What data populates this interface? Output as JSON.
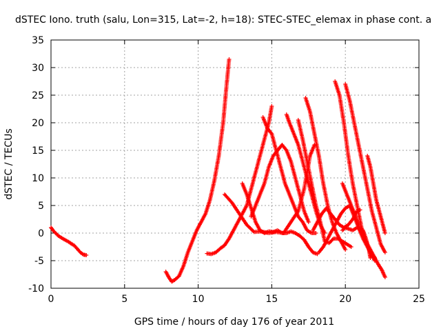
{
  "chart_data": {
    "type": "scatter",
    "title": "dSTEC Iono. truth (salu, Lon=315, Lat=-2, h=18): STEC-STEC_elemax in phase cont. a",
    "xlabel": "GPS time / hours of day 176 of year 2011",
    "ylabel": "dSTEC  / TECUs",
    "xlim": [
      0,
      25
    ],
    "ylim": [
      -10,
      35
    ],
    "xticks": [
      0,
      5,
      10,
      15,
      20,
      25
    ],
    "yticks": [
      -10,
      -5,
      0,
      5,
      10,
      15,
      20,
      25,
      30,
      35
    ],
    "xtick_labels": [
      "0",
      "5",
      "10",
      "15",
      "20",
      "25"
    ],
    "ytick_labels": [
      "-10",
      "-5",
      "0",
      "5",
      "10",
      "15",
      "20",
      "25",
      "30",
      "35"
    ],
    "grid": true,
    "marker": "+",
    "color": "#ff0000",
    "series": [
      {
        "x": [
          0,
          0.2,
          0.5,
          0.8,
          1.2,
          1.6,
          2.0,
          2.2,
          2.4
        ],
        "y": [
          1,
          0.3,
          -0.5,
          -1.0,
          -1.6,
          -2.3,
          -3.5,
          -3.9,
          -4.0
        ]
      },
      {
        "x": [
          7.8,
          8.0,
          8.2,
          8.4,
          8.7,
          9.0,
          9.3,
          9.6,
          9.9,
          10.2,
          10.5,
          10.8,
          11.1,
          11.4,
          11.7,
          11.9,
          12.1
        ],
        "y": [
          -7,
          -8,
          -8.8,
          -8.5,
          -7.8,
          -6,
          -3.5,
          -1.5,
          0.5,
          2,
          3.5,
          6,
          9.5,
          14,
          20,
          26,
          31.5
        ]
      },
      {
        "x": [
          10.6,
          10.9,
          11.2,
          11.5,
          11.8,
          12.1,
          12.4,
          12.7,
          13.0,
          13.3,
          13.6,
          13.9,
          14.2,
          14.5,
          14.8,
          15.0
        ],
        "y": [
          -3.7,
          -3.8,
          -3.5,
          -2.8,
          -2.2,
          -1,
          0.5,
          2,
          3.5,
          5,
          8,
          11,
          14,
          17,
          20,
          23
        ]
      },
      {
        "x": [
          11.8,
          12.3,
          12.8,
          13.3,
          13.8,
          14.3,
          14.8,
          15.3,
          15.8,
          16.3,
          16.8,
          17.2,
          17.6,
          17.9
        ],
        "y": [
          7,
          5.5,
          3.5,
          1.5,
          0.2,
          0.3,
          0,
          0.2,
          0,
          2,
          4,
          8,
          14,
          16
        ]
      },
      {
        "x": [
          13.0,
          13.3,
          13.6,
          13.9,
          14.2,
          14.5,
          14.8,
          15.1,
          15.4,
          15.7,
          16.0,
          16.3,
          16.6,
          16.9,
          17.2,
          17.5,
          17.8,
          18.1
        ],
        "y": [
          9,
          7,
          4.5,
          2,
          0.5,
          0,
          0.3,
          0.2,
          0.5,
          0,
          0,
          0.3,
          0,
          -0.5,
          -1.2,
          -2.5,
          -3.5,
          -3.8
        ]
      },
      {
        "x": [
          13.6,
          13.9,
          14.2,
          14.5,
          14.8,
          15.1,
          15.4,
          15.7,
          16.0,
          16.3,
          16.6,
          16.9,
          17.2,
          17.5
        ],
        "y": [
          3,
          5,
          7,
          9,
          12,
          14,
          15,
          16,
          15,
          13,
          10,
          7,
          4,
          2
        ]
      },
      {
        "x": [
          14.4,
          14.7,
          15.0,
          15.3,
          15.6,
          15.9,
          16.2,
          16.5,
          16.8,
          17.1,
          17.4,
          17.7,
          18.0
        ],
        "y": [
          21,
          19,
          18,
          15,
          12,
          9,
          7,
          5,
          3,
          2,
          0.5,
          0,
          0
        ]
      },
      {
        "x": [
          16.0,
          16.2,
          16.5,
          16.8,
          17.1,
          17.4,
          17.7,
          18.0,
          18.3,
          18.6
        ],
        "y": [
          21.5,
          20,
          18,
          16,
          13,
          10,
          7,
          4,
          1.5,
          0
        ]
      },
      {
        "x": [
          17.3,
          17.6,
          17.9,
          18.2,
          18.5,
          18.8,
          19.1,
          19.4,
          19.7,
          20.0
        ],
        "y": [
          24.5,
          22,
          18,
          14,
          9,
          5,
          2,
          0,
          -1.5,
          -3
        ]
      },
      {
        "x": [
          16.8,
          17.1,
          17.4,
          17.7,
          18.0,
          18.3,
          18.6,
          18.9,
          19.2,
          19.5,
          19.8,
          20.1,
          20.4
        ],
        "y": [
          20.5,
          17,
          13,
          9,
          5,
          2,
          -1.5,
          -1.8,
          -1.0,
          -1.0,
          -1.5,
          -2,
          -2.5
        ]
      },
      {
        "x": [
          18.2,
          18.5,
          18.8,
          19.1,
          19.4,
          19.7,
          20.0,
          20.3,
          20.6,
          20.9,
          21.2,
          21.5,
          21.8,
          22.0
        ],
        "y": [
          -3.5,
          -2.5,
          -1,
          0.5,
          2,
          3.5,
          4.5,
          5,
          3,
          1,
          -1,
          -2.5,
          -4,
          -5
        ]
      },
      {
        "x": [
          17.8,
          18.1,
          18.4,
          18.7,
          19.0,
          19.3,
          19.6,
          19.9,
          20.2,
          20.5,
          20.8,
          21.0
        ],
        "y": [
          0.5,
          2,
          3.5,
          4.5,
          3.5,
          2.5,
          1.5,
          1,
          1.5,
          2.5,
          4,
          4.2
        ]
      },
      {
        "x": [
          19.3,
          19.6,
          19.9,
          20.2,
          20.5,
          20.8,
          21.1,
          21.4,
          21.7,
          22.0
        ],
        "y": [
          27.5,
          25,
          20,
          14,
          9,
          5,
          1,
          -1.5,
          -3.5,
          -4.5
        ]
      },
      {
        "x": [
          20.0,
          20.3,
          20.6,
          20.9,
          21.2,
          21.5,
          21.8,
          22.1,
          22.4,
          22.7
        ],
        "y": [
          27,
          24,
          20,
          16,
          12,
          8,
          4,
          1,
          -2,
          -3.5
        ]
      },
      {
        "x": [
          21.5,
          21.7,
          21.9,
          22.1,
          22.3,
          22.5,
          22.7
        ],
        "y": [
          14,
          12,
          9,
          6,
          4,
          2,
          0
        ]
      },
      {
        "x": [
          19.8,
          20.1,
          20.4,
          20.7,
          21.0,
          21.3,
          21.6,
          21.9,
          22.2,
          22.5,
          22.7
        ],
        "y": [
          9,
          7,
          5,
          3,
          0.5,
          -1,
          -2.5,
          -4,
          -5.5,
          -6.8,
          -8
        ]
      },
      {
        "x": [
          19.8,
          20.0,
          20.2,
          20.5,
          20.8,
          21.0,
          21.2,
          21.4,
          21.6,
          21.7
        ],
        "y": [
          0.5,
          1,
          0.8,
          0.5,
          1,
          0.8,
          0.5,
          -1,
          -3,
          -4.5
        ]
      }
    ]
  }
}
